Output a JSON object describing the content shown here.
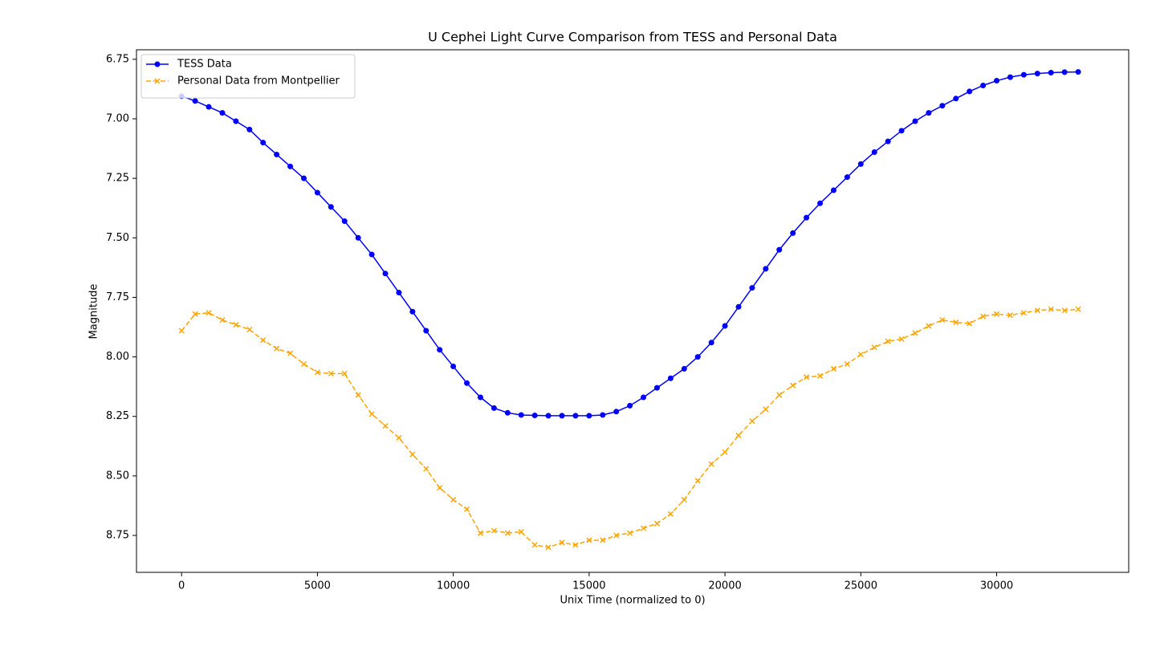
{
  "chart_data": {
    "type": "line",
    "title": "U Cephei Light Curve Comparison from TESS and Personal Data",
    "xlabel": "Unix Time (normalized to 0)",
    "ylabel": "Magnitude",
    "x": [
      0,
      500,
      1000,
      1500,
      2000,
      2500,
      3000,
      3500,
      4000,
      4500,
      5000,
      5500,
      6000,
      6500,
      7000,
      7500,
      8000,
      8500,
      9000,
      9500,
      10000,
      10500,
      11000,
      11500,
      12000,
      12500,
      13000,
      13500,
      14000,
      14500,
      15000,
      15500,
      16000,
      16500,
      17000,
      17500,
      18000,
      18500,
      19000,
      19500,
      20000,
      20500,
      21000,
      21500,
      22000,
      22500,
      23000,
      23500,
      24000,
      24500,
      25000,
      25500,
      26000,
      26500,
      27000,
      27500,
      28000,
      28500,
      29000,
      29500,
      30000,
      30500,
      31000,
      31500,
      32000,
      32500,
      33000
    ],
    "series": [
      {
        "name": "TESS Data",
        "color": "#0000ff",
        "linestyle": "solid",
        "marker": "circle",
        "values": [
          6.905,
          6.925,
          6.95,
          6.975,
          7.01,
          7.045,
          7.1,
          7.15,
          7.2,
          7.25,
          7.31,
          7.37,
          7.43,
          7.5,
          7.57,
          7.65,
          7.73,
          7.81,
          7.89,
          7.97,
          8.04,
          8.11,
          8.17,
          8.215,
          8.235,
          8.244,
          8.246,
          8.247,
          8.247,
          8.247,
          8.247,
          8.244,
          8.23,
          8.205,
          8.17,
          8.13,
          8.09,
          8.05,
          8.0,
          7.94,
          7.87,
          7.79,
          7.71,
          7.63,
          7.55,
          7.48,
          7.415,
          7.355,
          7.3,
          7.245,
          7.19,
          7.14,
          7.095,
          7.05,
          7.01,
          6.975,
          6.945,
          6.915,
          6.885,
          6.86,
          6.84,
          6.825,
          6.815,
          6.81,
          6.806,
          6.804,
          6.803
        ]
      },
      {
        "name": "Personal Data from Montpellier",
        "color": "#ffa500",
        "linestyle": "dashed",
        "marker": "x",
        "values": [
          7.89,
          7.82,
          7.815,
          7.845,
          7.865,
          7.885,
          7.93,
          7.965,
          7.985,
          8.03,
          8.065,
          8.07,
          8.07,
          8.16,
          8.24,
          8.29,
          8.34,
          8.41,
          8.47,
          8.55,
          8.6,
          8.64,
          8.74,
          8.73,
          8.74,
          8.735,
          8.79,
          8.8,
          8.78,
          8.79,
          8.77,
          8.77,
          8.75,
          8.74,
          8.72,
          8.7,
          8.66,
          8.6,
          8.52,
          8.45,
          8.4,
          8.33,
          8.27,
          8.22,
          8.16,
          8.12,
          8.085,
          8.08,
          8.05,
          8.03,
          7.99,
          7.96,
          7.935,
          7.925,
          7.9,
          7.87,
          7.845,
          7.855,
          7.86,
          7.83,
          7.82,
          7.825,
          7.815,
          7.805,
          7.8,
          7.805,
          7.8
        ]
      }
    ],
    "xlim": [
      -1660,
      34860
    ],
    "xticks": [
      0,
      5000,
      10000,
      15000,
      20000,
      25000,
      30000
    ],
    "ylim": [
      8.905,
      6.71
    ],
    "yticks": [
      6.75,
      {
        "value": 7.0,
        "label": "7.00"
      },
      7.25,
      {
        "value": 7.5,
        "label": "7.50"
      },
      7.75,
      {
        "value": 8.0,
        "label": "8.00"
      },
      8.25,
      {
        "value": 8.5,
        "label": "8.50"
      },
      8.75
    ],
    "grid": false,
    "legend": "upper left"
  }
}
